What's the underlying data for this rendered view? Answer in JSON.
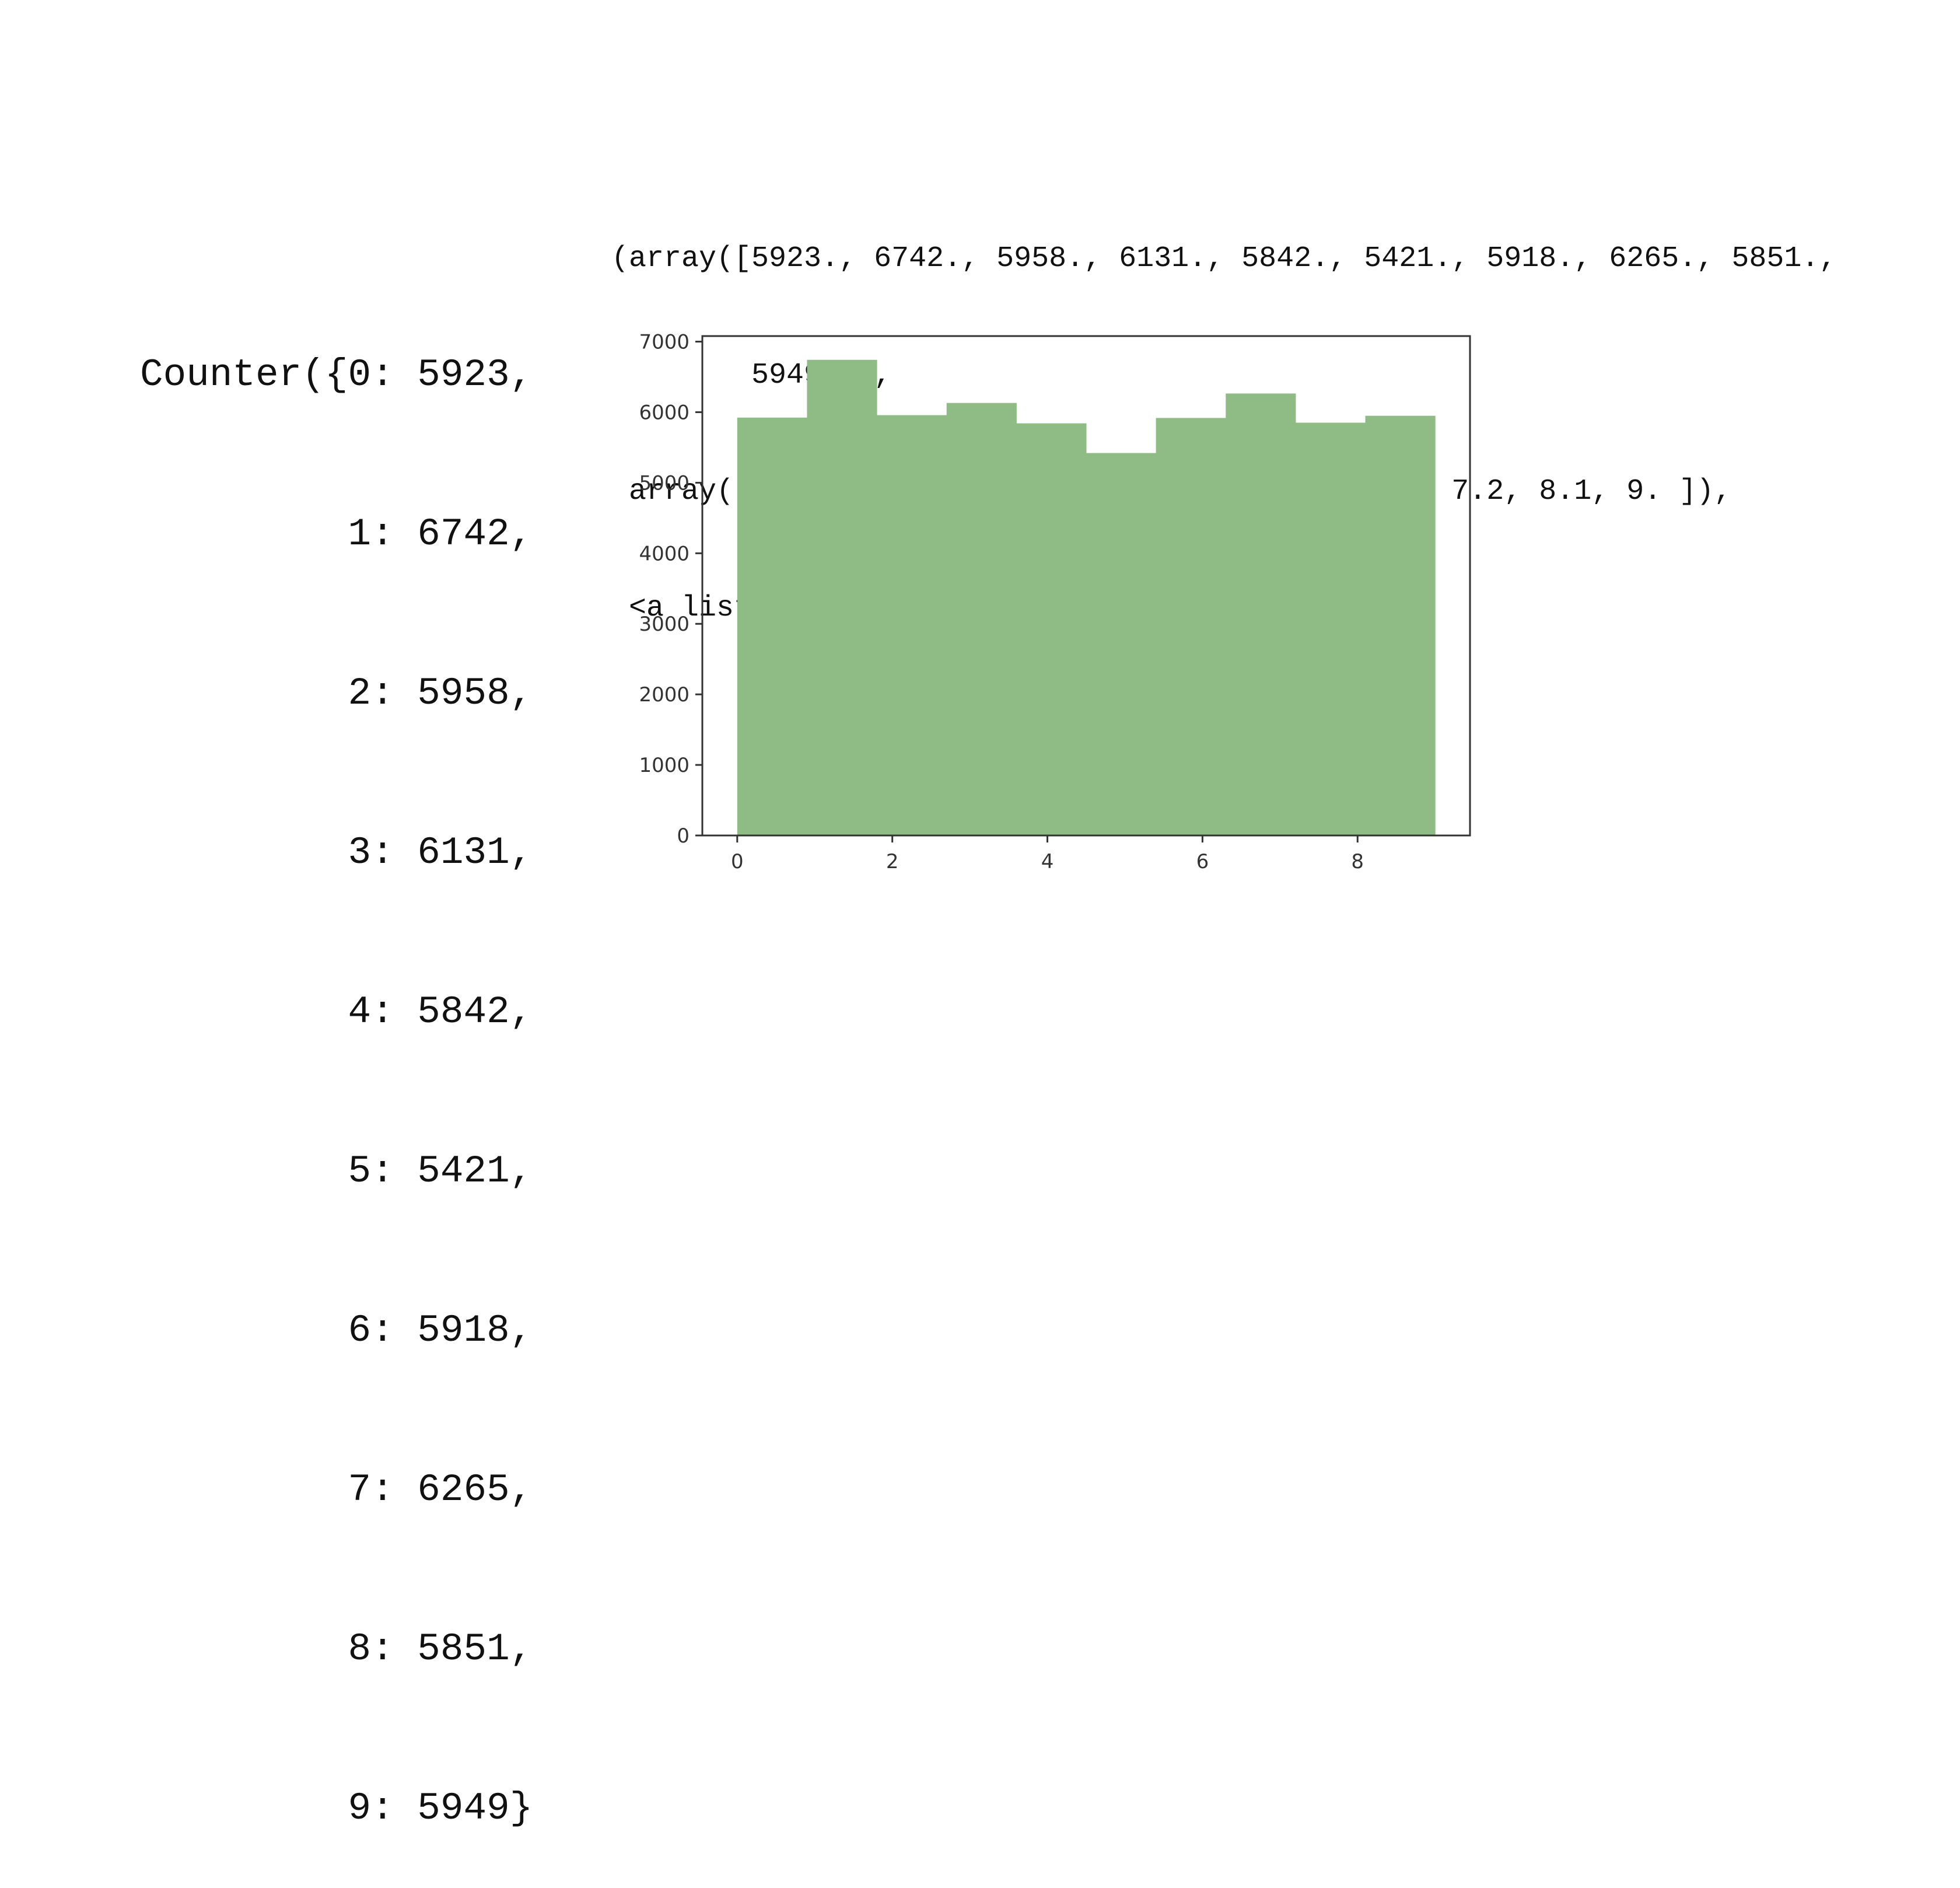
{
  "counter": {
    "lines": [
      "Counter({0: 5923,",
      "         1: 6742,",
      "         2: 5958,",
      "         3: 6131,",
      "         4: 5842,",
      "         5: 5421,",
      "         6: 5918,",
      "         7: 6265,",
      "         8: 5851,",
      "         9: 5949}"
    ]
  },
  "output": {
    "lines": [
      "(array([5923., 6742., 5958., 6131., 5842., 5421., 5918., 6265., 5851.,",
      "        5949.]),",
      " array([0. , 0.9, 1.8, 2.7, 3.6, 4.5, 5.4, 6.3, 7.2, 8.1, 9. ]),",
      " <a list of 10 Patch objects>)"
    ]
  },
  "chart_data": {
    "type": "bar",
    "title": "",
    "xlabel": "",
    "ylabel": "",
    "bin_edges": [
      0,
      0.9,
      1.8,
      2.7,
      3.6,
      4.5,
      5.4,
      6.3,
      7.2,
      8.1,
      9.0
    ],
    "values": [
      5923,
      6742,
      5958,
      6131,
      5842,
      5421,
      5918,
      6265,
      5851,
      5949
    ],
    "xlim": [
      -0.45,
      9.45
    ],
    "ylim": [
      0,
      7079
    ],
    "xticks": [
      0,
      2,
      4,
      6,
      8
    ],
    "yticks": [
      0,
      1000,
      2000,
      3000,
      4000,
      5000,
      6000,
      7000
    ],
    "bar_color": "#8fbc84",
    "grid": false
  }
}
